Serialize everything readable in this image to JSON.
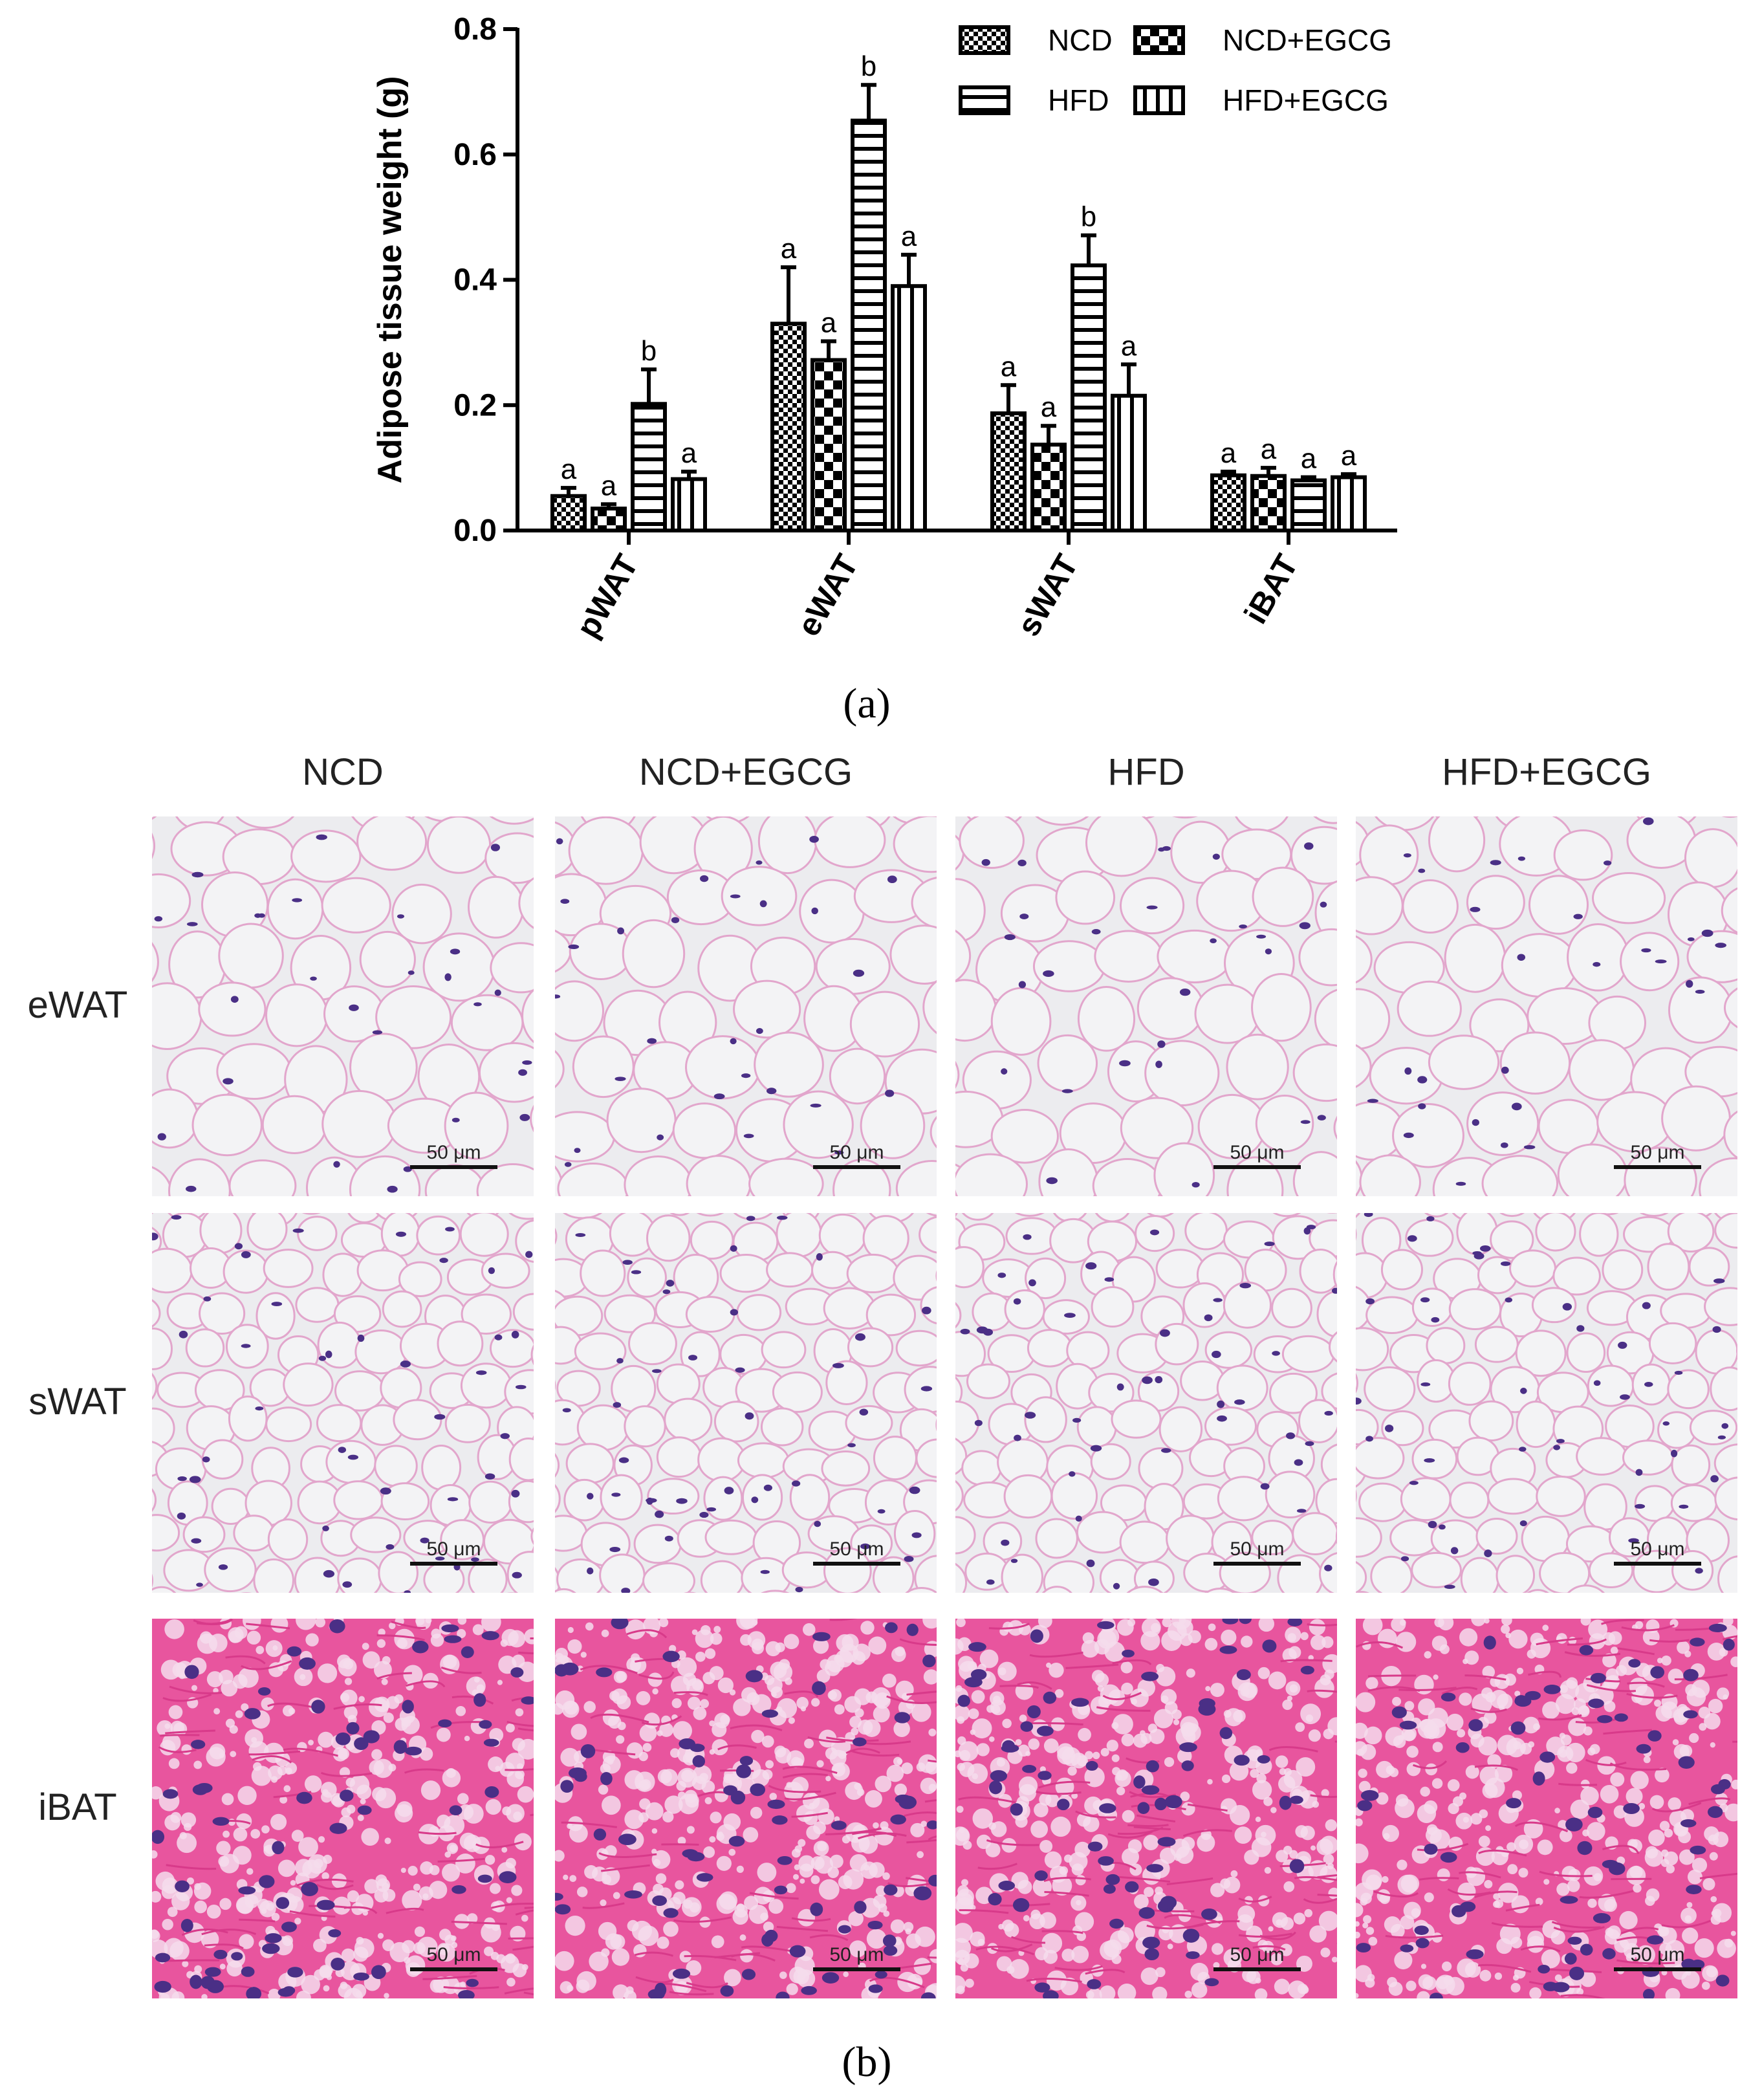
{
  "panel_a_label": "(a)",
  "panel_b_label": "(b)",
  "chart_data": {
    "type": "bar",
    "title": "",
    "xlabel": "",
    "ylabel": "Adipose tissue weight (g)",
    "ylim": [
      0,
      0.8
    ],
    "yticks": [
      "0.0",
      "0.2",
      "0.4",
      "0.6",
      "0.8"
    ],
    "categories": [
      "pWAT",
      "eWAT",
      "sWAT",
      "iBAT"
    ],
    "legend_position": "top-right",
    "series": [
      {
        "name": "NCD",
        "pattern": "checker-fine",
        "values": [
          0.055,
          0.33,
          0.187,
          0.088
        ],
        "errors": [
          0.013,
          0.09,
          0.045,
          0.006
        ],
        "letters": [
          "a",
          "a",
          "a",
          "a"
        ]
      },
      {
        "name": "NCD+EGCG",
        "pattern": "checker-coarse",
        "values": [
          0.035,
          0.272,
          0.137,
          0.087
        ],
        "errors": [
          0.007,
          0.03,
          0.03,
          0.013
        ],
        "letters": [
          "a",
          "a",
          "a",
          "a"
        ]
      },
      {
        "name": "HFD",
        "pattern": "horizontal-stripes",
        "values": [
          0.202,
          0.654,
          0.423,
          0.08
        ],
        "errors": [
          0.055,
          0.057,
          0.048,
          0.005
        ],
        "letters": [
          "b",
          "b",
          "b",
          "a"
        ]
      },
      {
        "name": "HFD+EGCG",
        "pattern": "vertical-stripes",
        "values": [
          0.082,
          0.39,
          0.215,
          0.085
        ],
        "errors": [
          0.012,
          0.05,
          0.05,
          0.005
        ],
        "letters": [
          "a",
          "a",
          "a",
          "a"
        ]
      }
    ]
  },
  "micrographs": {
    "columns": [
      "NCD",
      "NCD+EGCG",
      "HFD",
      "HFD+EGCG"
    ],
    "rows": [
      {
        "label": "eWAT",
        "type": "white-adipose-large",
        "scale_labels": [
          "50 μm",
          "50 μm",
          "50 μm",
          "50 μm"
        ]
      },
      {
        "label": "sWAT",
        "type": "white-adipose-small",
        "scale_labels": [
          "50 μm",
          "50 μm",
          "50 μm",
          "50 μm"
        ]
      },
      {
        "label": "iBAT",
        "type": "brown-adipose",
        "scale_labels": [
          "50 μm",
          "50 μm",
          "50 μm",
          "50 μm"
        ]
      }
    ],
    "colors": {
      "white_bg": "#ececef",
      "membrane": "#e2a6cc",
      "nucleus": "#4a2f86",
      "brown_bg": "#e8559e",
      "brown_fiber": "#d83a8a",
      "droplet": "#f4dcec"
    }
  }
}
